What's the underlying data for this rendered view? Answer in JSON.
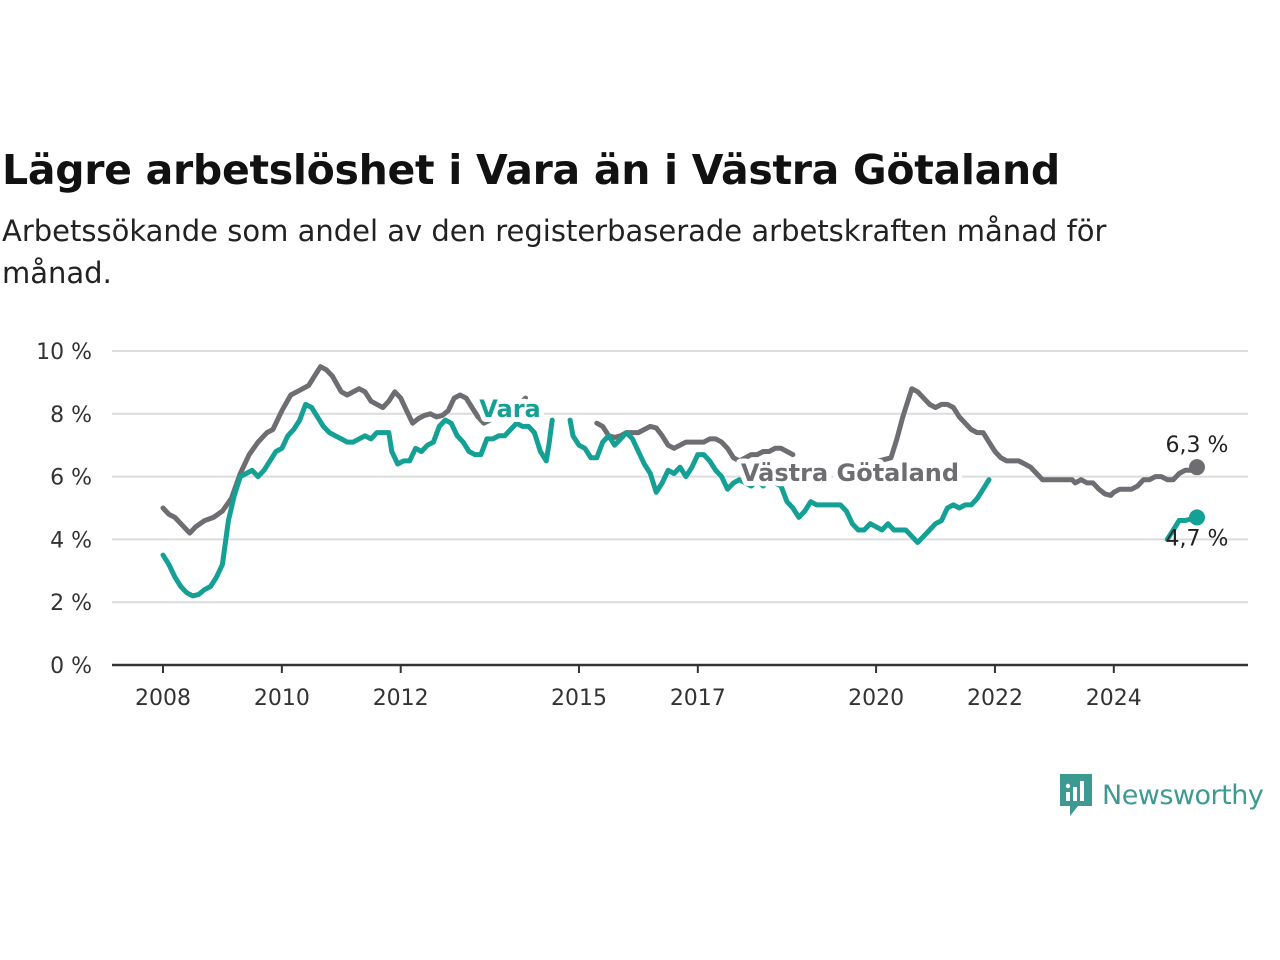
{
  "chart_data": {
    "type": "line",
    "title": "Lägre arbetslöshet i Vara än i Västra Götaland",
    "subtitle": "Arbetssökande som andel av den registerbaserade arbetskraften månad för månad.",
    "xlabel": "",
    "ylabel": "",
    "xlim": [
      2008,
      2025.4
    ],
    "ylim": [
      0,
      10
    ],
    "y_ticks": [
      0,
      2,
      4,
      6,
      8,
      10
    ],
    "y_tick_labels": [
      "0 %",
      "2 %",
      "4 %",
      "6 %",
      "8 %",
      "10 %"
    ],
    "x_ticks": [
      2008,
      2010,
      2012,
      2015,
      2017,
      2020,
      2022,
      2024
    ],
    "x_tick_labels": [
      "2008",
      "2010",
      "2012",
      "2015",
      "2017",
      "2020",
      "2022",
      "2024"
    ],
    "grid": "horizontal",
    "series": [
      {
        "name": "Västra Götaland",
        "color": "#6e6d72",
        "end_label": "6,3 %",
        "points": [
          [
            2008.0,
            5.0
          ],
          [
            2008.1,
            4.8
          ],
          [
            2008.2,
            4.7
          ],
          [
            2008.35,
            4.4
          ],
          [
            2008.45,
            4.2
          ],
          [
            2008.55,
            4.4
          ],
          [
            2008.7,
            4.6
          ],
          [
            2008.85,
            4.7
          ],
          [
            2009.0,
            4.9
          ],
          [
            2009.15,
            5.3
          ],
          [
            2009.3,
            6.1
          ],
          [
            2009.45,
            6.7
          ],
          [
            2009.6,
            7.1
          ],
          [
            2009.75,
            7.4
          ],
          [
            2009.85,
            7.5
          ],
          [
            2010.0,
            8.1
          ],
          [
            2010.15,
            8.6
          ],
          [
            2010.3,
            8.75
          ],
          [
            2010.45,
            8.9
          ],
          [
            2010.55,
            9.2
          ],
          [
            2010.65,
            9.5
          ],
          [
            2010.75,
            9.4
          ],
          [
            2010.85,
            9.2
          ],
          [
            2011.0,
            8.7
          ],
          [
            2011.1,
            8.6
          ],
          [
            2011.2,
            8.7
          ],
          [
            2011.3,
            8.8
          ],
          [
            2011.4,
            8.7
          ],
          [
            2011.5,
            8.4
          ],
          [
            2011.6,
            8.3
          ],
          [
            2011.7,
            8.2
          ],
          [
            2011.8,
            8.4
          ],
          [
            2011.9,
            8.7
          ],
          [
            2012.0,
            8.5
          ],
          [
            2012.1,
            8.1
          ],
          [
            2012.2,
            7.7
          ],
          [
            2012.3,
            7.85
          ],
          [
            2012.4,
            7.95
          ],
          [
            2012.5,
            8.0
          ],
          [
            2012.6,
            7.9
          ],
          [
            2012.7,
            7.95
          ],
          [
            2012.8,
            8.1
          ],
          [
            2012.9,
            8.5
          ],
          [
            2013.0,
            8.6
          ],
          [
            2013.1,
            8.5
          ],
          [
            2013.2,
            8.2
          ],
          [
            2013.3,
            7.9
          ],
          [
            2013.4,
            7.7
          ],
          [
            2013.5,
            7.8
          ],
          [
            2013.6,
            7.9
          ],
          [
            2013.7,
            8.1
          ],
          [
            2013.8,
            8.1
          ],
          [
            2013.9,
            8.2
          ],
          [
            2014.0,
            8.3
          ],
          [
            2014.1,
            8.5
          ],
          null,
          [
            2015.3,
            7.7
          ],
          [
            2015.4,
            7.6
          ],
          [
            2015.5,
            7.3
          ],
          [
            2015.6,
            7.25
          ],
          [
            2015.7,
            7.3
          ],
          [
            2015.8,
            7.4
          ],
          [
            2015.9,
            7.4
          ],
          [
            2016.0,
            7.4
          ],
          [
            2016.1,
            7.5
          ],
          [
            2016.2,
            7.6
          ],
          [
            2016.3,
            7.55
          ],
          [
            2016.4,
            7.3
          ],
          [
            2016.5,
            7.0
          ],
          [
            2016.6,
            6.9
          ],
          [
            2016.7,
            7.0
          ],
          [
            2016.8,
            7.1
          ],
          [
            2016.9,
            7.1
          ],
          [
            2017.0,
            7.1
          ],
          [
            2017.1,
            7.1
          ],
          [
            2017.2,
            7.2
          ],
          [
            2017.3,
            7.2
          ],
          [
            2017.4,
            7.1
          ],
          [
            2017.5,
            6.9
          ],
          [
            2017.6,
            6.6
          ],
          [
            2017.7,
            6.5
          ],
          [
            2017.8,
            6.6
          ],
          [
            2017.9,
            6.7
          ],
          [
            2018.0,
            6.7
          ],
          [
            2018.1,
            6.8
          ],
          [
            2018.2,
            6.8
          ],
          [
            2018.3,
            6.9
          ],
          [
            2018.4,
            6.9
          ],
          [
            2018.5,
            6.8
          ],
          [
            2018.6,
            6.7
          ],
          null,
          [
            2020.05,
            6.5
          ],
          [
            2020.15,
            6.55
          ],
          [
            2020.25,
            6.6
          ],
          [
            2020.35,
            7.2
          ],
          [
            2020.45,
            7.9
          ],
          [
            2020.55,
            8.5
          ],
          [
            2020.6,
            8.8
          ],
          [
            2020.7,
            8.7
          ],
          [
            2020.8,
            8.5
          ],
          [
            2020.9,
            8.3
          ],
          [
            2021.0,
            8.2
          ],
          [
            2021.1,
            8.3
          ],
          [
            2021.2,
            8.3
          ],
          [
            2021.3,
            8.2
          ],
          [
            2021.4,
            7.9
          ],
          [
            2021.5,
            7.7
          ],
          [
            2021.6,
            7.5
          ],
          [
            2021.7,
            7.4
          ],
          [
            2021.8,
            7.4
          ],
          [
            2021.9,
            7.1
          ],
          [
            2022.0,
            6.8
          ],
          [
            2022.1,
            6.6
          ],
          [
            2022.2,
            6.5
          ],
          [
            2022.3,
            6.5
          ],
          [
            2022.4,
            6.5
          ],
          [
            2022.5,
            6.4
          ],
          [
            2022.6,
            6.3
          ],
          [
            2022.7,
            6.1
          ],
          [
            2022.8,
            5.9
          ],
          [
            2022.9,
            5.9
          ],
          [
            2023.0,
            5.9
          ],
          [
            2023.1,
            5.9
          ],
          [
            2023.2,
            5.9
          ],
          [
            2023.3,
            5.9
          ],
          [
            2023.35,
            5.8
          ],
          [
            2023.45,
            5.9
          ],
          [
            2023.55,
            5.8
          ],
          [
            2023.65,
            5.8
          ],
          [
            2023.75,
            5.6
          ],
          [
            2023.85,
            5.45
          ],
          [
            2023.95,
            5.4
          ],
          [
            2024.0,
            5.5
          ],
          [
            2024.1,
            5.6
          ],
          [
            2024.2,
            5.6
          ],
          [
            2024.3,
            5.6
          ],
          [
            2024.4,
            5.7
          ],
          [
            2024.5,
            5.9
          ],
          [
            2024.6,
            5.9
          ],
          [
            2024.7,
            6.0
          ],
          [
            2024.8,
            6.0
          ],
          [
            2024.9,
            5.9
          ],
          [
            2025.0,
            5.9
          ],
          [
            2025.1,
            6.1
          ],
          [
            2025.2,
            6.2
          ],
          [
            2025.3,
            6.2
          ],
          [
            2025.4,
            6.3
          ]
        ]
      },
      {
        "name": "Vara",
        "color": "#14a094",
        "end_label": "4,7 %",
        "points": [
          [
            2008.0,
            3.5
          ],
          [
            2008.1,
            3.2
          ],
          [
            2008.2,
            2.8
          ],
          [
            2008.3,
            2.5
          ],
          [
            2008.4,
            2.3
          ],
          [
            2008.5,
            2.2
          ],
          [
            2008.6,
            2.25
          ],
          [
            2008.7,
            2.4
          ],
          [
            2008.8,
            2.5
          ],
          [
            2008.9,
            2.8
          ],
          [
            2009.0,
            3.2
          ],
          [
            2009.1,
            4.6
          ],
          [
            2009.2,
            5.4
          ],
          [
            2009.3,
            6.0
          ],
          [
            2009.4,
            6.1
          ],
          [
            2009.5,
            6.2
          ],
          [
            2009.6,
            6.0
          ],
          [
            2009.7,
            6.2
          ],
          [
            2009.8,
            6.5
          ],
          [
            2009.9,
            6.8
          ],
          [
            2010.0,
            6.9
          ],
          [
            2010.1,
            7.3
          ],
          [
            2010.2,
            7.5
          ],
          [
            2010.3,
            7.8
          ],
          [
            2010.4,
            8.3
          ],
          [
            2010.5,
            8.2
          ],
          [
            2010.6,
            7.9
          ],
          [
            2010.7,
            7.6
          ],
          [
            2010.8,
            7.4
          ],
          [
            2010.9,
            7.3
          ],
          [
            2011.0,
            7.2
          ],
          [
            2011.1,
            7.1
          ],
          [
            2011.2,
            7.1
          ],
          [
            2011.3,
            7.2
          ],
          [
            2011.4,
            7.3
          ],
          [
            2011.5,
            7.2
          ],
          [
            2011.6,
            7.4
          ],
          [
            2011.7,
            7.4
          ],
          [
            2011.8,
            7.4
          ],
          [
            2011.85,
            6.8
          ],
          [
            2011.95,
            6.4
          ],
          [
            2012.05,
            6.5
          ],
          [
            2012.15,
            6.5
          ],
          [
            2012.25,
            6.9
          ],
          [
            2012.35,
            6.8
          ],
          [
            2012.45,
            7.0
          ],
          [
            2012.55,
            7.1
          ],
          [
            2012.65,
            7.6
          ],
          [
            2012.75,
            7.8
          ],
          [
            2012.85,
            7.7
          ],
          [
            2012.95,
            7.3
          ],
          [
            2013.05,
            7.1
          ],
          [
            2013.15,
            6.8
          ],
          [
            2013.25,
            6.7
          ],
          [
            2013.35,
            6.7
          ],
          [
            2013.45,
            7.2
          ],
          [
            2013.55,
            7.2
          ],
          [
            2013.65,
            7.3
          ],
          [
            2013.75,
            7.3
          ],
          [
            2013.85,
            7.5
          ],
          [
            2013.95,
            7.7
          ],
          [
            2014.05,
            7.6
          ],
          [
            2014.15,
            7.6
          ],
          [
            2014.25,
            7.4
          ],
          [
            2014.35,
            6.8
          ],
          [
            2014.45,
            6.5
          ],
          [
            2014.5,
            7.1
          ],
          [
            2014.55,
            7.8
          ],
          null,
          [
            2014.85,
            7.8
          ],
          [
            2014.9,
            7.3
          ],
          [
            2015.0,
            7.0
          ],
          [
            2015.1,
            6.9
          ],
          [
            2015.2,
            6.6
          ],
          [
            2015.3,
            6.6
          ],
          [
            2015.4,
            7.1
          ],
          [
            2015.5,
            7.3
          ],
          [
            2015.6,
            7.0
          ],
          [
            2015.7,
            7.2
          ],
          [
            2015.8,
            7.4
          ],
          [
            2015.9,
            7.2
          ],
          [
            2016.0,
            6.8
          ],
          [
            2016.1,
            6.4
          ],
          [
            2016.2,
            6.1
          ],
          [
            2016.3,
            5.5
          ],
          [
            2016.4,
            5.8
          ],
          [
            2016.5,
            6.2
          ],
          [
            2016.6,
            6.1
          ],
          [
            2016.7,
            6.3
          ],
          [
            2016.8,
            6.0
          ],
          [
            2016.9,
            6.3
          ],
          [
            2017.0,
            6.7
          ],
          [
            2017.1,
            6.7
          ],
          [
            2017.2,
            6.5
          ],
          [
            2017.3,
            6.2
          ],
          [
            2017.4,
            6.0
          ],
          [
            2017.5,
            5.6
          ],
          [
            2017.6,
            5.8
          ],
          [
            2017.7,
            5.9
          ],
          [
            2017.8,
            5.8
          ],
          [
            2017.9,
            5.7
          ],
          [
            2018.0,
            5.9
          ],
          [
            2018.1,
            5.7
          ],
          [
            2018.2,
            6.0
          ],
          [
            2018.3,
            5.8
          ],
          [
            2018.4,
            5.7
          ],
          [
            2018.5,
            5.2
          ],
          [
            2018.6,
            5.0
          ],
          [
            2018.7,
            4.7
          ],
          [
            2018.8,
            4.9
          ],
          [
            2018.9,
            5.2
          ],
          [
            2019.0,
            5.1
          ],
          [
            2019.1,
            5.1
          ],
          [
            2019.2,
            5.1
          ],
          [
            2019.3,
            5.1
          ],
          [
            2019.4,
            5.1
          ],
          [
            2019.5,
            4.9
          ],
          [
            2019.6,
            4.5
          ],
          [
            2019.7,
            4.3
          ],
          [
            2019.8,
            4.3
          ],
          [
            2019.9,
            4.5
          ],
          [
            2020.0,
            4.4
          ],
          [
            2020.1,
            4.3
          ],
          [
            2020.2,
            4.5
          ],
          [
            2020.3,
            4.3
          ],
          [
            2020.4,
            4.3
          ],
          [
            2020.5,
            4.3
          ],
          [
            2020.6,
            4.1
          ],
          [
            2020.7,
            3.9
          ],
          [
            2020.8,
            4.1
          ],
          [
            2020.9,
            4.3
          ],
          [
            2021.0,
            4.5
          ],
          [
            2021.1,
            4.6
          ],
          [
            2021.2,
            5.0
          ],
          [
            2021.3,
            5.1
          ],
          [
            2021.4,
            5.0
          ],
          [
            2021.5,
            5.1
          ],
          [
            2021.6,
            5.1
          ],
          [
            2021.7,
            5.3
          ],
          [
            2021.8,
            5.6
          ],
          [
            2021.9,
            5.9
          ]
        ]
      }
    ]
  },
  "logo": {
    "text": "Newsworthy"
  }
}
